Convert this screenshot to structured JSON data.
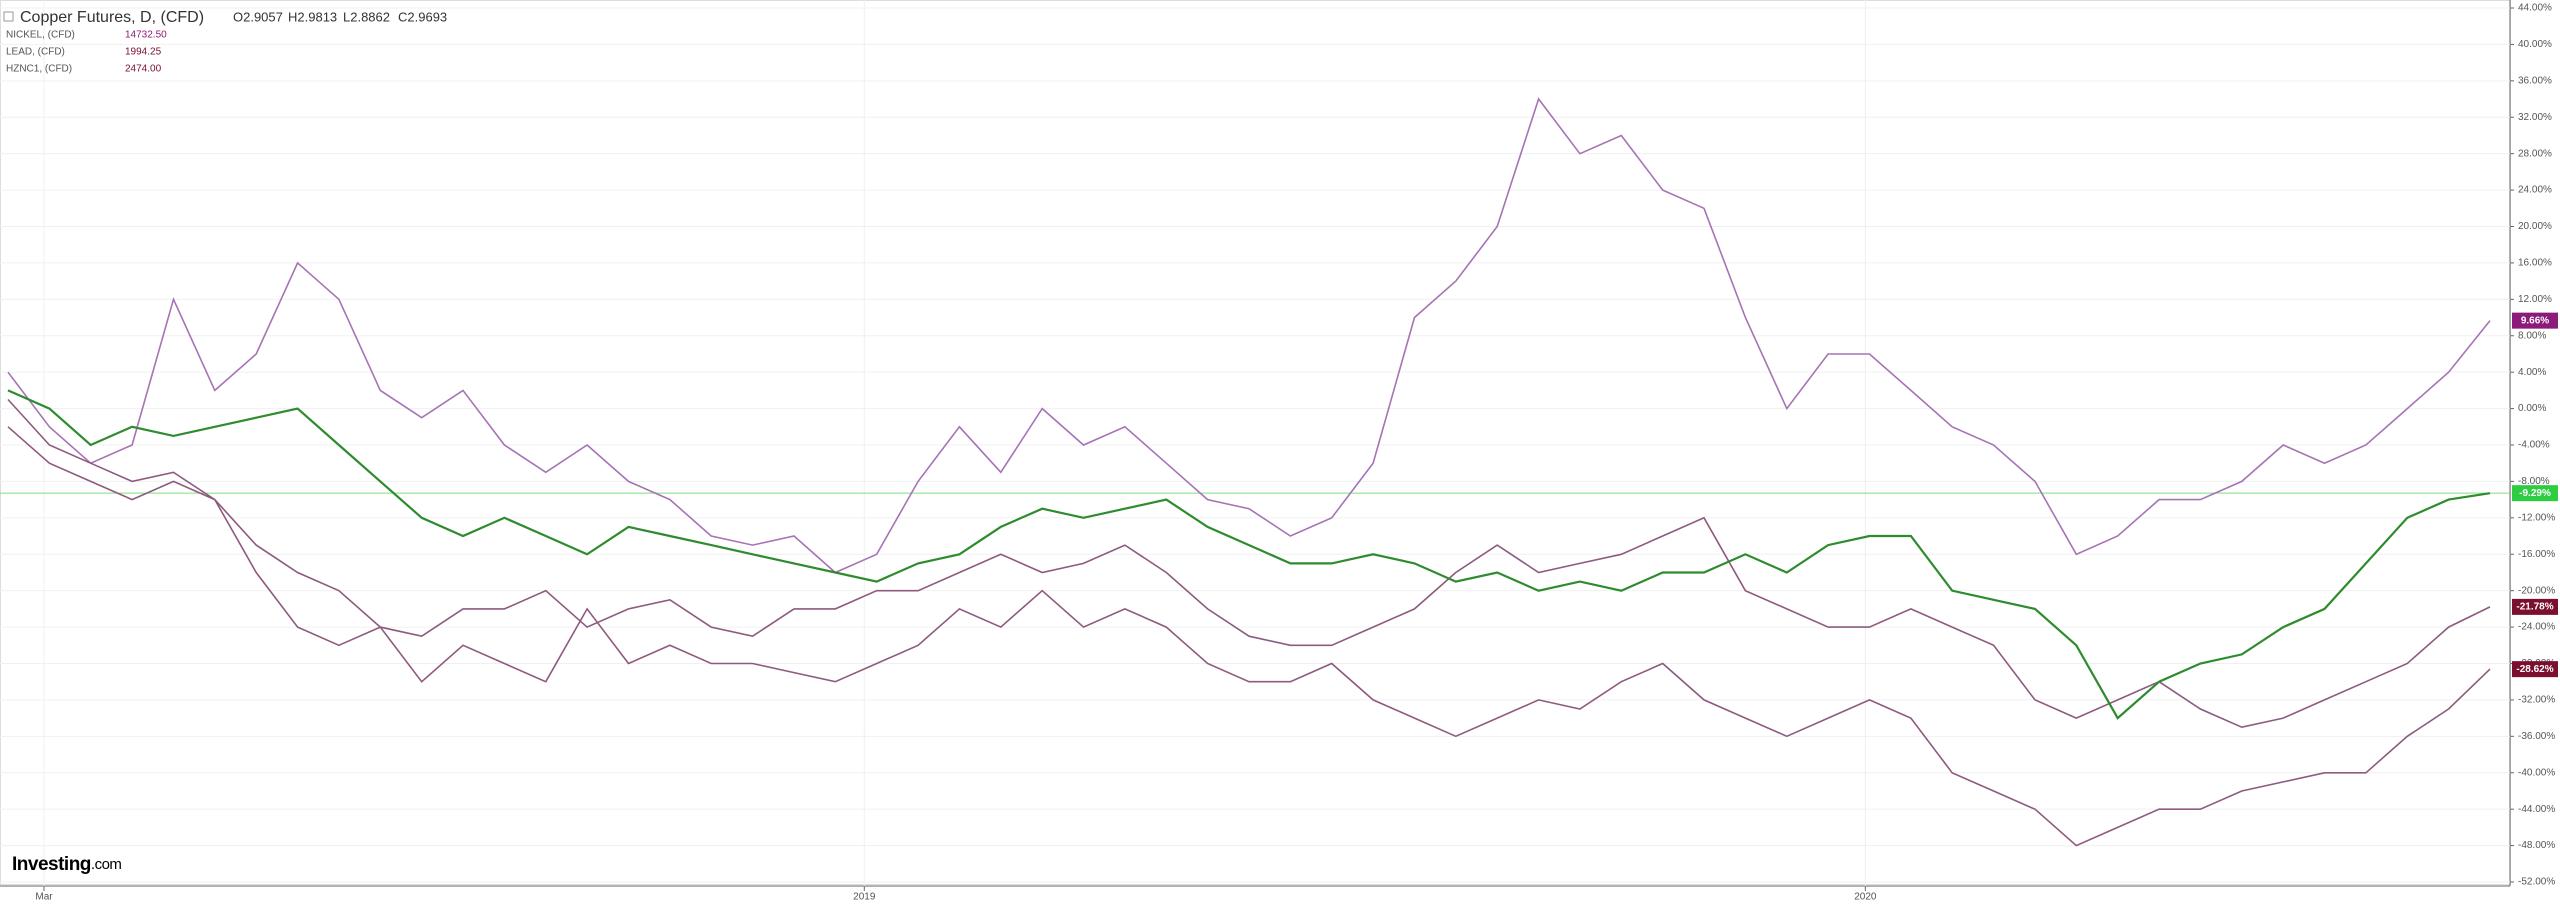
{
  "chart_data": {
    "type": "line",
    "ohlc": [
      "O2.9057",
      "H2.9813",
      "L2.8862",
      "C2.9693"
    ],
    "brand": "Investing",
    "brand_suffix": ".com",
    "x": [
      0,
      1,
      2,
      3,
      4,
      5,
      6,
      7,
      8,
      9,
      10,
      11,
      12,
      13,
      14,
      15,
      16,
      17,
      18,
      19,
      20,
      21,
      22,
      23,
      24,
      25,
      26,
      27,
      28,
      29,
      30,
      31,
      32,
      33,
      34,
      35,
      36,
      37,
      38,
      39,
      40,
      41,
      42,
      43,
      44,
      45,
      46,
      47,
      48,
      49,
      50,
      51,
      52,
      53,
      54,
      55,
      56,
      57,
      58,
      59,
      60
    ],
    "xlim": [
      0,
      60
    ],
    "xticks": [
      {
        "value": 0.87,
        "label": "Mar"
      },
      {
        "value": 20.7,
        "label": "2019"
      },
      {
        "value": 44.9,
        "label": "2020"
      }
    ],
    "ylim": [
      -52,
      44
    ],
    "yticks": [
      {
        "value": 44,
        "label": "44.00%"
      },
      {
        "value": 40,
        "label": "40.00%"
      },
      {
        "value": 36,
        "label": "36.00%"
      },
      {
        "value": 32,
        "label": "32.00%"
      },
      {
        "value": 28,
        "label": "28.00%"
      },
      {
        "value": 24,
        "label": "24.00%"
      },
      {
        "value": 20,
        "label": "20.00%"
      },
      {
        "value": 16,
        "label": "16.00%"
      },
      {
        "value": 12,
        "label": "12.00%"
      },
      {
        "value": 8,
        "label": "8.00%"
      },
      {
        "value": 4,
        "label": "4.00%"
      },
      {
        "value": 0,
        "label": "0.00%"
      },
      {
        "value": -4,
        "label": "-4.00%"
      },
      {
        "value": -8,
        "label": "-8.00%"
      },
      {
        "value": -12,
        "label": "-12.00%"
      },
      {
        "value": -16,
        "label": "-16.00%"
      },
      {
        "value": -20,
        "label": "-20.00%"
      },
      {
        "value": -24,
        "label": "-24.00%"
      },
      {
        "value": -28,
        "label": "-28.00%"
      },
      {
        "value": -32,
        "label": "-32.00%"
      },
      {
        "value": -36,
        "label": "-36.00%"
      },
      {
        "value": -40,
        "label": "-40.00%"
      },
      {
        "value": -44,
        "label": "-44.00%"
      },
      {
        "value": -48,
        "label": "-48.00%"
      },
      {
        "value": -52,
        "label": "-52.00%"
      }
    ],
    "grid": true,
    "series": [
      {
        "name": "Copper Futures, D, (CFD)",
        "color": "#2e8b2e",
        "label_color": "#2ecc40",
        "last_value_label": "-9.29%",
        "values": [
          2,
          0,
          -4,
          -2,
          -3,
          -2,
          -1,
          0,
          -4,
          -8,
          -12,
          -14,
          -12,
          -14,
          -16,
          -13,
          -14,
          -15,
          -16,
          -17,
          -18,
          -19,
          -17,
          -16,
          -13,
          -11,
          -12,
          -11,
          -10,
          -13,
          -15,
          -17,
          -17,
          -16,
          -17,
          -19,
          -18,
          -20,
          -19,
          -20,
          -18,
          -18,
          -16,
          -18,
          -15,
          -14,
          -14,
          -20,
          -21,
          -22,
          -26,
          -34,
          -30,
          -28,
          -27,
          -24,
          -22,
          -17,
          -12,
          -10,
          -9.29
        ]
      },
      {
        "name": "NICKEL, (CFD)",
        "last_price": "14732.50",
        "color": "#a673b4",
        "label_color": "#8b1a7a",
        "last_value_label": "9.66%",
        "values": [
          4,
          -2,
          -6,
          -4,
          12,
          2,
          6,
          16,
          12,
          2,
          -1,
          2,
          -4,
          -7,
          -4,
          -8,
          -10,
          -14,
          -15,
          -14,
          -18,
          -16,
          -8,
          -2,
          -7,
          0,
          -4,
          -2,
          -6,
          -10,
          -11,
          -14,
          -12,
          -6,
          10,
          14,
          20,
          34,
          28,
          30,
          24,
          22,
          10,
          0,
          6,
          6,
          2,
          -2,
          -4,
          -8,
          -16,
          -14,
          -10,
          -10,
          -8,
          -4,
          -6,
          -4,
          0,
          4,
          9.66
        ]
      },
      {
        "name": "LEAD, (CFD)",
        "last_price": "1994.25",
        "color": "#8e5a7e",
        "label_color": "#7a0f2e",
        "last_value_label": "-21.78%",
        "values": [
          1,
          -4,
          -6,
          -8,
          -7,
          -10,
          -15,
          -18,
          -20,
          -24,
          -25,
          -22,
          -22,
          -20,
          -24,
          -22,
          -21,
          -24,
          -25,
          -22,
          -22,
          -20,
          -20,
          -18,
          -16,
          -18,
          -17,
          -15,
          -18,
          -22,
          -25,
          -26,
          -26,
          -24,
          -22,
          -18,
          -15,
          -18,
          -17,
          -16,
          -14,
          -12,
          -20,
          -22,
          -24,
          -24,
          -22,
          -24,
          -26,
          -32,
          -34,
          -32,
          -30,
          -33,
          -35,
          -34,
          -32,
          -30,
          -28,
          -24,
          -21.78
        ]
      },
      {
        "name": "HZNC1, (CFD)",
        "last_price": "2474.00",
        "color": "#8e5a7e",
        "label_color": "#7a0f2e",
        "last_value_label": "-28.62%",
        "values": [
          -2,
          -6,
          -8,
          -10,
          -8,
          -10,
          -18,
          -24,
          -26,
          -24,
          -30,
          -26,
          -28,
          -30,
          -22,
          -28,
          -26,
          -28,
          -28,
          -29,
          -30,
          -28,
          -26,
          -22,
          -24,
          -20,
          -24,
          -22,
          -24,
          -28,
          -30,
          -30,
          -28,
          -32,
          -34,
          -36,
          -34,
          -32,
          -33,
          -30,
          -28,
          -32,
          -34,
          -36,
          -34,
          -32,
          -34,
          -40,
          -42,
          -44,
          -48,
          -46,
          -44,
          -44,
          -42,
          -41,
          -40,
          -40,
          -36,
          -33,
          -28.62
        ]
      }
    ]
  }
}
